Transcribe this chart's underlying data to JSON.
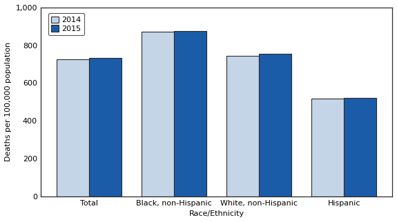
{
  "categories": [
    "Total",
    "Black, non-Hispanic",
    "White, non-Hispanic",
    "Hispanic"
  ],
  "values_2014": [
    724.6,
    870.7,
    742.8,
    519.0
  ],
  "values_2015": [
    733.1,
    876.1,
    753.2,
    521.0
  ],
  "color_2014": "#c5d5e8",
  "color_2015": "#1a5ca8",
  "legend_labels": [
    "2014",
    "2015"
  ],
  "ylabel": "Deaths per 100,000 population",
  "xlabel": "Race/Ethnicity",
  "ylim": [
    0,
    1000
  ],
  "yticks": [
    0,
    200,
    400,
    600,
    800,
    1000
  ],
  "ytick_labels": [
    "0",
    "200",
    "400",
    "600",
    "800",
    "1,000"
  ],
  "bar_width": 0.38,
  "edge_color": "#2a2a2a",
  "background_color": "#ffffff"
}
